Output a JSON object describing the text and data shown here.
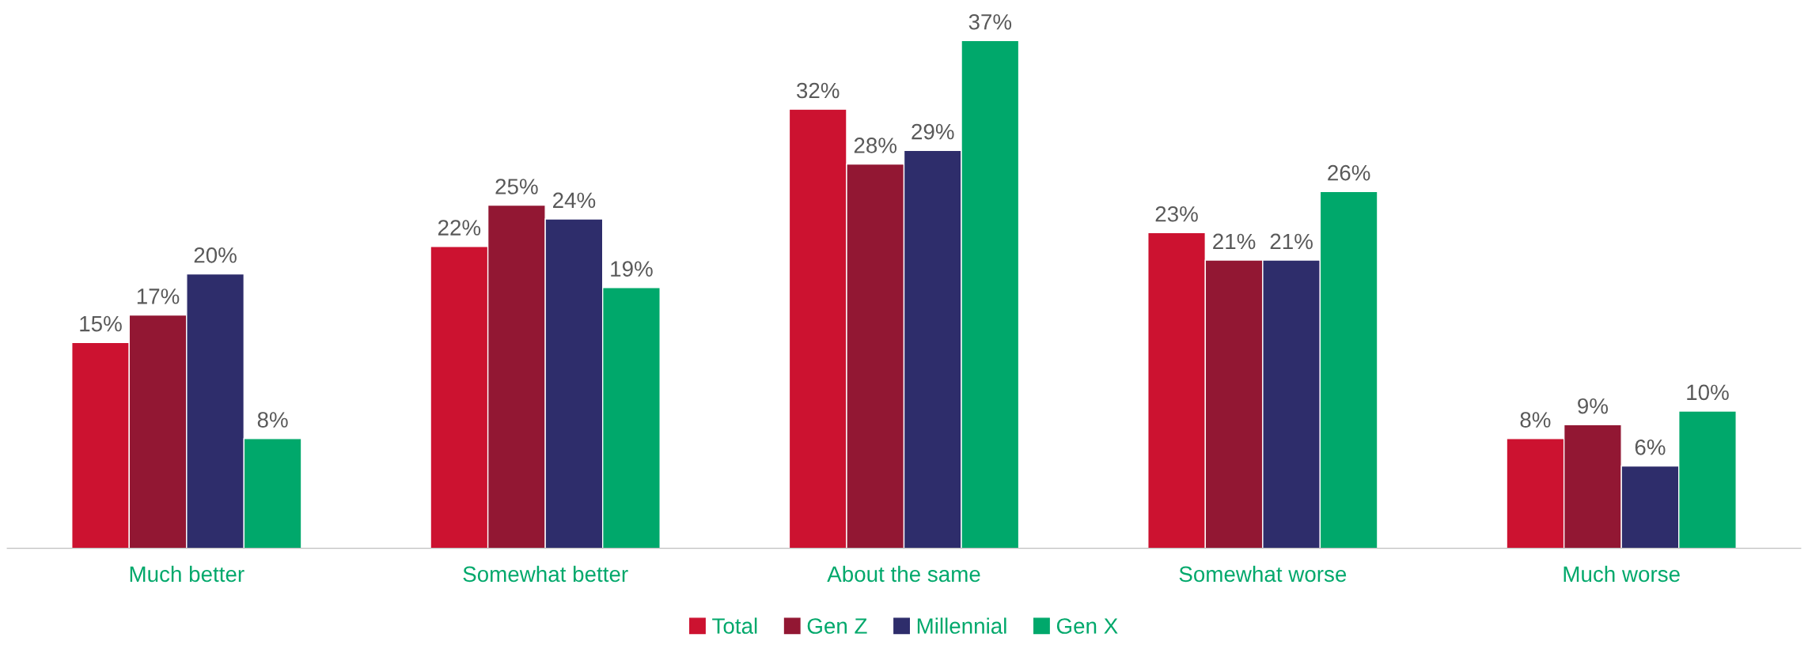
{
  "chart_data": {
    "type": "bar",
    "categories": [
      "Much better",
      "Somewhat better",
      "About the same",
      "Somewhat worse",
      "Much worse"
    ],
    "series": [
      {
        "name": "Total",
        "color": "#cc1230",
        "values": [
          15,
          22,
          32,
          23,
          8
        ],
        "value_labels": [
          "15%",
          "22%",
          "32%",
          "23%",
          "8%"
        ]
      },
      {
        "name": "Gen Z",
        "color": "#921733",
        "values": [
          17,
          25,
          28,
          21,
          9
        ],
        "value_labels": [
          "17%",
          "25%",
          "28%",
          "21%",
          "9%"
        ]
      },
      {
        "name": "Millennial",
        "color": "#2e2d6b",
        "values": [
          20,
          24,
          29,
          21,
          6
        ],
        "value_labels": [
          "20%",
          "24%",
          "29%",
          "21%",
          "6%"
        ]
      },
      {
        "name": "Gen X",
        "color": "#00a86b",
        "values": [
          8,
          19,
          37,
          26,
          10
        ],
        "value_labels": [
          "8%",
          "19%",
          "37%",
          "26%",
          "10%"
        ]
      }
    ],
    "tick_labels": "x",
    "grid": false,
    "legend": "bottom"
  }
}
